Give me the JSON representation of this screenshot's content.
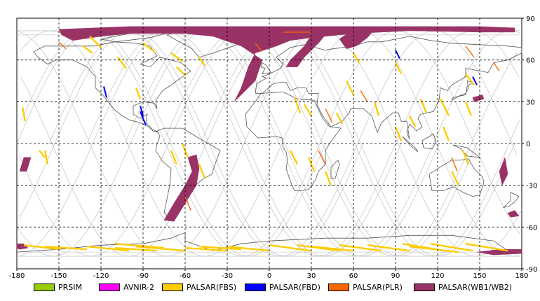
{
  "map": {
    "lon_ticks": [
      "-180",
      "-150",
      "-120",
      "-90",
      "-60",
      "-30",
      "0",
      "30",
      "60",
      "90",
      "120",
      "150",
      "180"
    ],
    "lat_ticks": [
      "90",
      "60",
      "30",
      "0",
      "-30",
      "-60",
      "-90"
    ],
    "lon_range": [
      -180,
      180
    ],
    "lat_range": [
      -90,
      90
    ],
    "grid": "dashed",
    "background": "#ffffff",
    "coastline_color": "#555555",
    "orbit_track_color": "#b8b8b8"
  },
  "legend": {
    "placement": "bottom",
    "items": [
      {
        "label": "PRSIM",
        "color": "#99cc00"
      },
      {
        "label": "AVNIR-2",
        "color": "#ff00ff"
      },
      {
        "label": "PALSAR(FBS)",
        "color": "#ffcc00"
      },
      {
        "label": "PALSAR(FBD)",
        "color": "#0000ff"
      },
      {
        "label": "PALSAR(PLR)",
        "color": "#ff6600"
      },
      {
        "label": "PALSAR(WB1/WB2)",
        "color": "#993366"
      }
    ]
  }
}
